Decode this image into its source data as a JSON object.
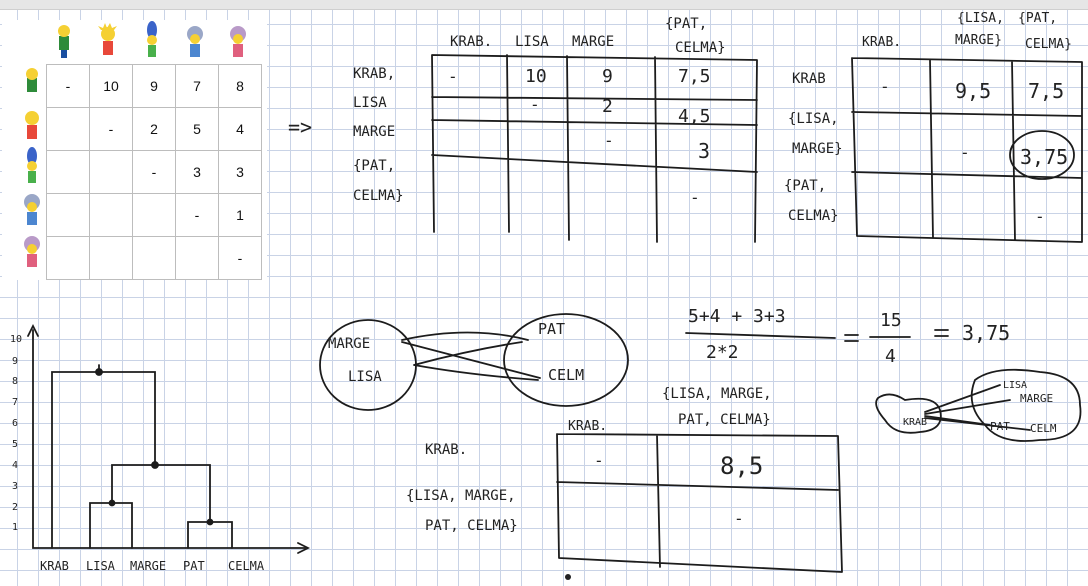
{
  "matrix": {
    "rows": [
      [
        "-",
        "10",
        "9",
        "7",
        "8"
      ],
      [
        "",
        "-",
        "2",
        "5",
        "4"
      ],
      [
        "",
        "",
        "-",
        "3",
        "3"
      ],
      [
        "",
        "",
        "",
        "-",
        "1"
      ],
      [
        "",
        "",
        "",
        "",
        "-"
      ]
    ],
    "characters": [
      "krab",
      "lisa",
      "marge",
      "pat",
      "selma"
    ]
  },
  "table1": {
    "col_headers": [
      "KRAB.",
      "LISA",
      "MARGE",
      "{PAT,",
      "CELMA}"
    ],
    "row_headers": [
      "KRAB,",
      "LISA",
      "MARGE",
      "{PAT,",
      "CELMA}"
    ],
    "cells": [
      [
        "-",
        "10",
        "9",
        "7,5"
      ],
      [
        "",
        "-",
        "2",
        "4,5"
      ],
      [
        "",
        "",
        "-",
        "3"
      ],
      [
        "",
        "",
        "",
        "-"
      ]
    ]
  },
  "arrow": "=>",
  "table2": {
    "col_headers": [
      "KRAB.",
      "{LISA,",
      "MARGE}",
      "{PAT,",
      "CELMA}"
    ],
    "row_headers": [
      "KRAB",
      "{LISA,",
      "MARGE}",
      "{PAT,",
      "CELMA}"
    ],
    "cells": [
      [
        "-",
        "9,5",
        "7,5"
      ],
      [
        "",
        "-",
        "3,75"
      ],
      [
        "",
        "",
        "-"
      ]
    ]
  },
  "formula": {
    "numerator": "5+4 + 3+3",
    "denominator": "2*2",
    "mid_num": "15",
    "mid_den": "4",
    "result": "3,75"
  },
  "sets": {
    "left": [
      "MARGE",
      "LISA"
    ],
    "right": [
      "PAT",
      "CELM"
    ]
  },
  "small_sets": {
    "a": "KRAB",
    "b": [
      "LISA",
      "MARGE"
    ],
    "c": [
      "PAT",
      "CELM"
    ]
  },
  "table3": {
    "col_headers": [
      "KRAB.",
      "{LISA, MARGE,",
      "PAT, CELMA}"
    ],
    "cells": [
      [
        "-",
        "8,5"
      ],
      [
        "",
        "-"
      ]
    ],
    "side_labels": [
      "KRAB.",
      "{LISA, MARGE,",
      "PAT, CELMA}"
    ]
  },
  "dendrogram": {
    "y_ticks": [
      "10",
      "9",
      "8",
      "7",
      "6",
      "5",
      "4",
      "3",
      "2",
      "1"
    ],
    "leaves": [
      "KRAB",
      "LISA",
      "MARGE",
      "PAT",
      "CELMA"
    ],
    "merges": [
      [
        "PAT",
        "CELMA",
        1
      ],
      [
        "LISA",
        "MARGE",
        2
      ],
      [
        "LISA+MARGE",
        "PAT+CELMA",
        3.75
      ],
      [
        "KRAB",
        "REST",
        8.5
      ]
    ]
  }
}
